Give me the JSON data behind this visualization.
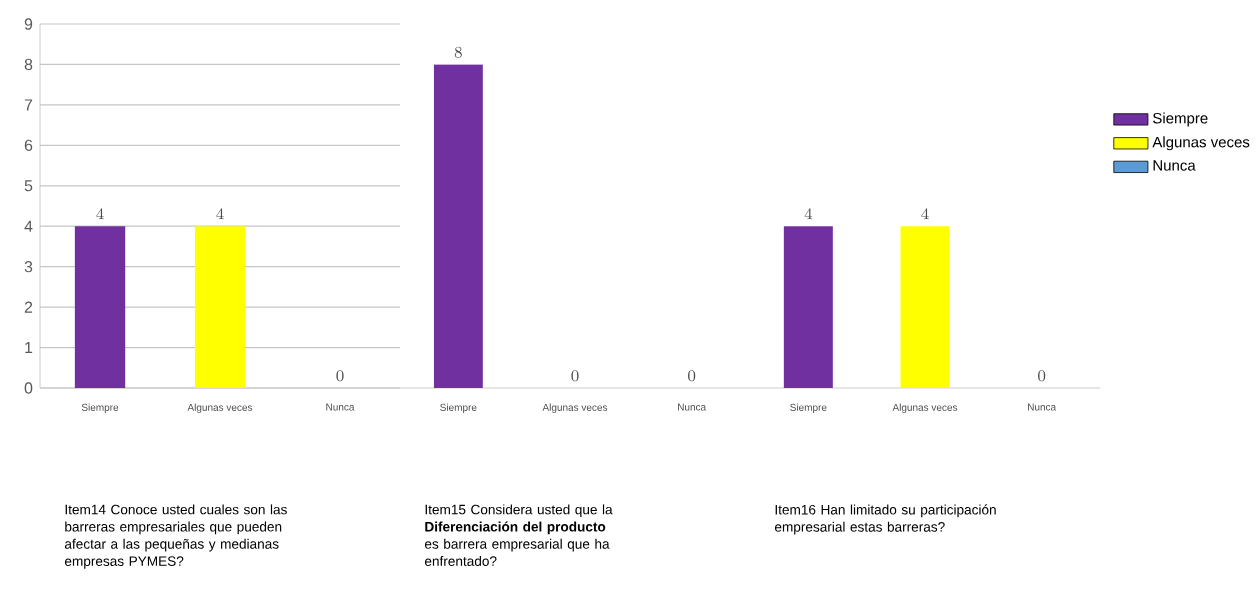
{
  "chart_data": [
    {
      "type": "bar",
      "categories": [
        "Siempre",
        "Algunas veces",
        "Nunca"
      ],
      "values": [
        4,
        4,
        0
      ],
      "colors": [
        "#7030a0",
        "#ffff00",
        "#5b9bd5"
      ],
      "ylim": [
        0,
        9
      ],
      "yticks": [
        0,
        1,
        2,
        3,
        4,
        5,
        6,
        7,
        8,
        9
      ],
      "grid": "y",
      "data_labels": true,
      "annotations": [
        "Item14 Conoce usted cuales son las barreras empresariales que pueden afectar a las pequeñas y medianas empresas PYMES?"
      ]
    },
    {
      "type": "bar",
      "categories": [
        "Siempre",
        "Algunas veces",
        "Nunca"
      ],
      "values": [
        8,
        0,
        0
      ],
      "colors": [
        "#7030a0",
        "#ffff00",
        "#5b9bd5"
      ],
      "ylim": [
        0,
        9
      ],
      "grid": "y",
      "data_labels": true,
      "tick_labels": "x",
      "annotations": [
        "Item15 Considera usted que la **Diferenciación del producto** es barrera empresarial que ha enfrentado?"
      ]
    },
    {
      "type": "bar",
      "categories": [
        "Siempre",
        "Algunas veces",
        "Nunca"
      ],
      "series": [
        {
          "name": "Siempre",
          "color": "#7030a0",
          "values": [
            4,
            null,
            null
          ]
        },
        {
          "name": "Algunas veces",
          "color": "#ffff00",
          "values": [
            null,
            4,
            null
          ]
        },
        {
          "name": "Nunca",
          "color": "#5b9bd5",
          "values": [
            null,
            null,
            0
          ]
        }
      ],
      "ylim": [
        0,
        9
      ],
      "grid": "y",
      "data_labels": true,
      "tick_labels": "x",
      "legend": "right",
      "annotations": [
        "Item16 Han limitado su participación empresarial estas barreras?"
      ]
    }
  ]
}
